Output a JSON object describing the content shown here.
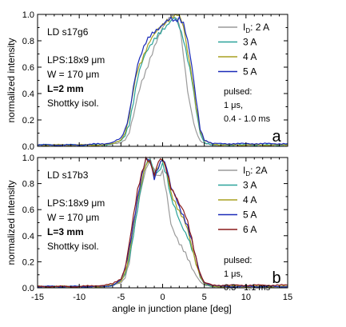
{
  "chart_data": [
    {
      "type": "line",
      "panel_letter": "a",
      "ylabel": "normalized  intensity",
      "xlim": [
        -15,
        15
      ],
      "ylim": [
        0.0,
        1.0
      ],
      "x_ticks": [
        -15,
        -10,
        -5,
        0,
        5,
        10,
        15
      ],
      "y_ticks": [
        "0.0",
        "0.2",
        "0.4",
        "0.6",
        "0.8",
        "1.0"
      ],
      "legend_placement": "top-right",
      "annotations": [
        {
          "text": "LD s17g6",
          "bold": false
        },
        {
          "text": "LPS:18x9 μm",
          "bold": false
        },
        {
          "text": "W = 170 μm",
          "bold": false
        },
        {
          "text": "L=2 mm",
          "bold": true
        },
        {
          "text": "Shottky isol.",
          "bold": false
        }
      ],
      "pulse_note": [
        "pulsed:",
        "1 μs,",
        "0.4 - 1.0 ms"
      ],
      "legend": [
        {
          "label": "I",
          "sub": "D",
          "rest": ": 2 A",
          "color": "#9a9a9a"
        },
        {
          "label": "3 A",
          "color": "#2aa39a"
        },
        {
          "label": "4 A",
          "color": "#a8a020"
        },
        {
          "label": "5 A",
          "color": "#1a2ab8"
        }
      ],
      "series": [
        {
          "name": "2 A",
          "color": "#9a9a9a",
          "x": [
            -15,
            -10,
            -7,
            -6,
            -5,
            -4.5,
            -4,
            -3.5,
            -3,
            -2.5,
            -2,
            -1.5,
            -1,
            -0.5,
            0,
            0.5,
            1,
            1.5,
            2,
            2.5,
            3,
            3.5,
            4,
            4.5,
            5,
            6,
            7,
            10,
            15
          ],
          "y": [
            0.01,
            0.01,
            0.01,
            0.02,
            0.03,
            0.05,
            0.1,
            0.22,
            0.38,
            0.5,
            0.58,
            0.66,
            0.74,
            0.82,
            0.9,
            0.96,
            1.0,
            0.98,
            0.92,
            0.68,
            0.42,
            0.26,
            0.12,
            0.04,
            0.02,
            0.01,
            0.01,
            0.01,
            0.01
          ]
        },
        {
          "name": "3 A",
          "color": "#2aa39a",
          "x": [
            -15,
            -10,
            -7,
            -6,
            -5,
            -4.5,
            -4,
            -3.5,
            -3,
            -2.5,
            -2,
            -1.5,
            -1,
            -0.5,
            0,
            0.5,
            1,
            1.5,
            2,
            2.5,
            3,
            3.5,
            4,
            4.5,
            5,
            6,
            7,
            10,
            15
          ],
          "y": [
            0.01,
            0.01,
            0.01,
            0.02,
            0.04,
            0.08,
            0.18,
            0.35,
            0.52,
            0.62,
            0.7,
            0.76,
            0.82,
            0.86,
            0.88,
            0.9,
            0.94,
            0.98,
            0.92,
            0.82,
            0.66,
            0.5,
            0.28,
            0.1,
            0.03,
            0.01,
            0.01,
            0.01,
            0.01
          ]
        },
        {
          "name": "4 A",
          "color": "#a8a020",
          "x": [
            -15,
            -10,
            -7,
            -6,
            -5,
            -4.5,
            -4,
            -3.5,
            -3,
            -2.5,
            -2,
            -1.5,
            -1,
            -0.5,
            0,
            0.5,
            1,
            1.5,
            2,
            2.5,
            3,
            3.5,
            4,
            4.5,
            5,
            6,
            7,
            10,
            15
          ],
          "y": [
            0.01,
            0.01,
            0.01,
            0.02,
            0.05,
            0.1,
            0.22,
            0.42,
            0.58,
            0.66,
            0.74,
            0.8,
            0.84,
            0.88,
            0.92,
            0.96,
            0.98,
            1.0,
            0.98,
            0.9,
            0.72,
            0.55,
            0.32,
            0.12,
            0.04,
            0.02,
            0.01,
            0.01,
            0.01
          ]
        },
        {
          "name": "5 A",
          "color": "#1a2ab8",
          "x": [
            -15,
            -10,
            -7,
            -6,
            -5,
            -4.5,
            -4,
            -3.5,
            -3,
            -2.5,
            -2,
            -1.5,
            -1,
            -0.5,
            0,
            0.5,
            1,
            1.5,
            2,
            2.5,
            3,
            3.5,
            4,
            4.5,
            5,
            6,
            7,
            10,
            15
          ],
          "y": [
            0.01,
            0.01,
            0.02,
            0.03,
            0.06,
            0.12,
            0.26,
            0.46,
            0.62,
            0.7,
            0.78,
            0.84,
            0.88,
            0.9,
            0.92,
            0.94,
            0.96,
            0.95,
            0.98,
            0.94,
            0.8,
            0.6,
            0.36,
            0.14,
            0.05,
            0.02,
            0.02,
            0.02,
            0.02
          ]
        }
      ]
    },
    {
      "type": "line",
      "panel_letter": "b",
      "xlabel": "angle in  junction plane  [deg]",
      "ylabel": "normalized  intensity",
      "xlim": [
        -15,
        15
      ],
      "ylim": [
        0.0,
        1.0
      ],
      "x_ticks": [
        -15,
        -10,
        -5,
        0,
        5,
        10,
        15
      ],
      "y_ticks": [
        "0.0",
        "0.2",
        "0.4",
        "0.6",
        "0.8",
        "1.0"
      ],
      "legend_placement": "top-right",
      "annotations": [
        {
          "text": "LD s17b3",
          "bold": false
        },
        {
          "text": "LPS:18x9 μm",
          "bold": false
        },
        {
          "text": "W = 170 μm",
          "bold": false
        },
        {
          "text": "L=3 mm",
          "bold": true
        },
        {
          "text": "Shottky isol.",
          "bold": false
        }
      ],
      "pulse_note": [
        "pulsed:",
        "1 μs,",
        "0.3 - 1.1 ms"
      ],
      "legend": [
        {
          "label": "I",
          "sub": "D",
          "rest": ": 2A",
          "color": "#9a9a9a"
        },
        {
          "label": "3 A",
          "color": "#2aa39a"
        },
        {
          "label": "4 A",
          "color": "#a8a020"
        },
        {
          "label": "5 A",
          "color": "#1a2ab8"
        },
        {
          "label": "6 A",
          "color": "#8a1a1a"
        }
      ],
      "series": [
        {
          "name": "2A",
          "color": "#9a9a9a",
          "x": [
            -15,
            -10,
            -7,
            -6,
            -5,
            -4.5,
            -4,
            -3.5,
            -3,
            -2.5,
            -2,
            -1.5,
            -1,
            -0.5,
            0,
            0.5,
            1,
            1.5,
            2,
            2.5,
            3,
            3.5,
            4,
            4.5,
            5,
            6,
            7,
            10,
            15
          ],
          "y": [
            0.01,
            0.01,
            0.01,
            0.02,
            0.04,
            0.08,
            0.2,
            0.4,
            0.6,
            0.78,
            0.92,
            1.0,
            0.9,
            0.84,
            0.88,
            0.72,
            0.5,
            0.42,
            0.34,
            0.28,
            0.22,
            0.16,
            0.1,
            0.05,
            0.02,
            0.01,
            0.01,
            0.01,
            0.01
          ]
        },
        {
          "name": "3 A",
          "color": "#2aa39a",
          "x": [
            -15,
            -10,
            -7,
            -6,
            -5,
            -4.5,
            -4,
            -3.5,
            -3,
            -2.5,
            -2,
            -1.5,
            -1,
            -0.5,
            0,
            0.5,
            1,
            1.5,
            2,
            2.5,
            3,
            3.5,
            4,
            4.5,
            5,
            6,
            7,
            10,
            15
          ],
          "y": [
            0.01,
            0.01,
            0.01,
            0.02,
            0.05,
            0.1,
            0.22,
            0.42,
            0.62,
            0.8,
            0.94,
            0.98,
            0.88,
            0.9,
            0.96,
            0.86,
            0.68,
            0.6,
            0.52,
            0.46,
            0.4,
            0.3,
            0.18,
            0.08,
            0.03,
            0.01,
            0.01,
            0.01,
            0.01
          ]
        },
        {
          "name": "4 A",
          "color": "#a8a020",
          "x": [
            -15,
            -10,
            -7,
            -6,
            -5,
            -4.5,
            -4,
            -3.5,
            -3,
            -2.5,
            -2,
            -1.5,
            -1,
            -0.5,
            0,
            0.5,
            1,
            1.5,
            2,
            2.5,
            3,
            3.5,
            4,
            4.5,
            5,
            6,
            7,
            10,
            15
          ],
          "y": [
            0.01,
            0.01,
            0.01,
            0.02,
            0.05,
            0.12,
            0.26,
            0.46,
            0.66,
            0.82,
            0.96,
            0.98,
            0.86,
            0.92,
            0.98,
            0.9,
            0.74,
            0.66,
            0.58,
            0.52,
            0.44,
            0.32,
            0.2,
            0.09,
            0.03,
            0.01,
            0.01,
            0.01,
            0.01
          ]
        },
        {
          "name": "5 A",
          "color": "#1a2ab8",
          "x": [
            -15,
            -10,
            -7,
            -6,
            -5,
            -4.5,
            -4,
            -3.5,
            -3,
            -2.5,
            -2,
            -1.5,
            -1,
            -0.5,
            0,
            0.5,
            1,
            1.5,
            2,
            2.5,
            3,
            3.5,
            4,
            4.5,
            5,
            6,
            7,
            10,
            15
          ],
          "y": [
            0.01,
            0.01,
            0.01,
            0.02,
            0.06,
            0.14,
            0.3,
            0.5,
            0.7,
            0.86,
            0.98,
            0.96,
            0.84,
            0.94,
            1.0,
            0.92,
            0.76,
            0.7,
            0.62,
            0.56,
            0.48,
            0.36,
            0.22,
            0.1,
            0.04,
            0.02,
            0.01,
            0.01,
            0.01
          ]
        },
        {
          "name": "6 A",
          "color": "#8a1a1a",
          "x": [
            -15,
            -10,
            -7,
            -6,
            -5,
            -4.5,
            -4,
            -3.5,
            -3,
            -2.5,
            -2,
            -1.5,
            -1,
            -0.5,
            0,
            0.5,
            1,
            1.5,
            2,
            2.5,
            3,
            3.5,
            4,
            4.5,
            5,
            6,
            7,
            10,
            15
          ],
          "y": [
            0.01,
            0.01,
            0.02,
            0.03,
            0.07,
            0.16,
            0.34,
            0.54,
            0.74,
            0.88,
            1.0,
            0.98,
            0.86,
            0.96,
            0.98,
            0.9,
            0.78,
            0.72,
            0.64,
            0.58,
            0.5,
            0.38,
            0.24,
            0.11,
            0.04,
            0.02,
            0.02,
            0.02,
            0.02
          ]
        }
      ]
    }
  ]
}
